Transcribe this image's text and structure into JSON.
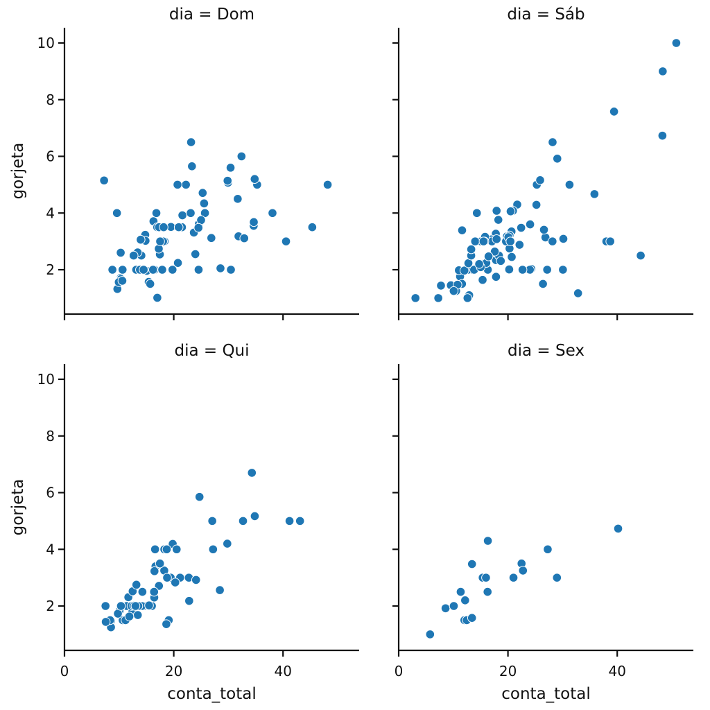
{
  "chart_data": {
    "type": "scatter",
    "facet_variable": "dia",
    "xlabel": "conta_total",
    "ylabel": "gorjeta",
    "xlim": [
      0,
      54
    ],
    "ylim": [
      0.45,
      10.55
    ],
    "xticks": [
      0,
      20,
      40
    ],
    "yticks": [
      2,
      4,
      6,
      8,
      10
    ],
    "grid": false,
    "color": "#1f77b4",
    "panels": [
      {
        "title": "dia = Dom",
        "points": [
          [
            16.99,
            1.01
          ],
          [
            10.34,
            1.66
          ],
          [
            21.01,
            3.5
          ],
          [
            23.68,
            3.31
          ],
          [
            24.59,
            3.61
          ],
          [
            25.29,
            4.71
          ],
          [
            8.77,
            2.0
          ],
          [
            26.88,
            3.12
          ],
          [
            15.04,
            1.96
          ],
          [
            14.78,
            3.23
          ],
          [
            10.27,
            1.71
          ],
          [
            35.26,
            5.0
          ],
          [
            15.42,
            1.57
          ],
          [
            18.43,
            3.0
          ],
          [
            14.83,
            3.02
          ],
          [
            21.58,
            3.92
          ],
          [
            10.33,
            1.67
          ],
          [
            16.29,
            3.71
          ],
          [
            16.97,
            3.5
          ],
          [
            17.46,
            2.54
          ],
          [
            13.94,
            3.06
          ],
          [
            9.68,
            1.32
          ],
          [
            30.4,
            5.6
          ],
          [
            18.29,
            3.0
          ],
          [
            22.23,
            5.0
          ],
          [
            32.4,
            6.0
          ],
          [
            28.55,
            2.05
          ],
          [
            18.04,
            3.0
          ],
          [
            12.54,
            2.5
          ],
          [
            10.29,
            2.6
          ],
          [
            34.81,
            5.2
          ],
          [
            9.94,
            1.56
          ],
          [
            25.56,
            4.34
          ],
          [
            19.49,
            3.51
          ],
          [
            38.07,
            4.0
          ],
          [
            23.95,
            2.55
          ],
          [
            25.71,
            4.0
          ],
          [
            17.31,
            3.5
          ],
          [
            29.93,
            5.07
          ],
          [
            14.07,
            2.5
          ],
          [
            13.13,
            2.0
          ],
          [
            17.26,
            2.74
          ],
          [
            24.55,
            2.0
          ],
          [
            19.77,
            2.0
          ],
          [
            29.85,
            5.14
          ],
          [
            48.17,
            5.0
          ],
          [
            25.0,
            3.75
          ],
          [
            13.39,
            2.61
          ],
          [
            16.49,
            2.0
          ],
          [
            21.5,
            3.5
          ],
          [
            12.66,
            2.5
          ],
          [
            16.21,
            2.0
          ],
          [
            13.81,
            2.0
          ],
          [
            17.51,
            3.0
          ],
          [
            24.52,
            3.48
          ],
          [
            20.76,
            2.24
          ],
          [
            31.71,
            4.5
          ],
          [
            10.59,
            1.61
          ],
          [
            10.63,
            2.0
          ],
          [
            7.25,
            5.15
          ],
          [
            31.85,
            3.18
          ],
          [
            16.82,
            4.0
          ],
          [
            32.9,
            3.11
          ],
          [
            17.89,
            2.0
          ],
          [
            14.48,
            2.0
          ],
          [
            9.6,
            4.0
          ],
          [
            34.63,
            3.55
          ],
          [
            34.65,
            3.68
          ],
          [
            23.33,
            5.65
          ],
          [
            45.35,
            3.5
          ],
          [
            23.17,
            6.5
          ],
          [
            40.55,
            3.0
          ],
          [
            20.69,
            5.0
          ],
          [
            20.9,
            3.5
          ],
          [
            30.46,
            2.0
          ],
          [
            18.15,
            3.5
          ],
          [
            23.1,
            4.0
          ],
          [
            15.69,
            1.5
          ]
        ]
      },
      {
        "title": "dia = Sáb",
        "points": [
          [
            20.65,
            3.35
          ],
          [
            17.92,
            4.08
          ],
          [
            20.29,
            2.75
          ],
          [
            15.77,
            2.23
          ],
          [
            39.42,
            7.58
          ],
          [
            19.82,
            3.18
          ],
          [
            17.81,
            2.34
          ],
          [
            13.37,
            2.0
          ],
          [
            12.69,
            2.0
          ],
          [
            21.7,
            4.3
          ],
          [
            19.65,
            3.0
          ],
          [
            9.55,
            1.45
          ],
          [
            18.35,
            2.5
          ],
          [
            15.06,
            3.0
          ],
          [
            20.69,
            2.45
          ],
          [
            17.78,
            3.27
          ],
          [
            24.06,
            3.6
          ],
          [
            16.31,
            2.0
          ],
          [
            16.93,
            3.07
          ],
          [
            18.69,
            2.31
          ],
          [
            31.27,
            5.0
          ],
          [
            16.04,
            2.24
          ],
          [
            38.01,
            3.0
          ],
          [
            26.41,
            1.5
          ],
          [
            11.24,
            1.76
          ],
          [
            48.27,
            6.73
          ],
          [
            20.29,
            3.21
          ],
          [
            13.81,
            2.0
          ],
          [
            11.02,
            1.98
          ],
          [
            18.29,
            3.76
          ],
          [
            17.59,
            2.64
          ],
          [
            20.08,
            3.15
          ],
          [
            16.45,
            2.47
          ],
          [
            3.07,
            1.0
          ],
          [
            20.23,
            2.01
          ],
          [
            15.01,
            2.09
          ],
          [
            12.02,
            1.97
          ],
          [
            17.07,
            3.0
          ],
          [
            26.86,
            3.14
          ],
          [
            25.28,
            5.0
          ],
          [
            14.73,
            2.2
          ],
          [
            10.51,
            1.25
          ],
          [
            17.92,
            3.08
          ],
          [
            44.3,
            2.5
          ],
          [
            22.42,
            3.48
          ],
          [
            20.92,
            4.08
          ],
          [
            15.36,
            1.64
          ],
          [
            20.49,
            4.06
          ],
          [
            25.21,
            4.29
          ],
          [
            18.24,
            3.76
          ],
          [
            14.31,
            4.0
          ],
          [
            14.0,
            3.0
          ],
          [
            7.25,
            1.0
          ],
          [
            50.81,
            10.0
          ],
          [
            15.81,
            3.16
          ],
          [
            26.59,
            3.41
          ],
          [
            38.73,
            3.0
          ],
          [
            24.27,
            2.03
          ],
          [
            12.76,
            2.23
          ],
          [
            30.06,
            2.0
          ],
          [
            25.89,
            5.16
          ],
          [
            48.33,
            9.0
          ],
          [
            13.27,
            2.5
          ],
          [
            28.17,
            6.5
          ],
          [
            12.9,
            1.1
          ],
          [
            28.15,
            3.0
          ],
          [
            11.59,
            1.5
          ],
          [
            7.74,
            1.44
          ],
          [
            30.14,
            3.09
          ],
          [
            20.45,
            3.0
          ],
          [
            13.28,
            2.72
          ],
          [
            22.12,
            2.88
          ],
          [
            24.01,
            2.0
          ],
          [
            15.69,
            3.0
          ],
          [
            11.61,
            3.39
          ],
          [
            10.77,
            1.47
          ],
          [
            15.53,
            3.0
          ],
          [
            10.07,
            1.25
          ],
          [
            12.6,
            1.0
          ],
          [
            32.83,
            1.17
          ],
          [
            35.83,
            4.67
          ],
          [
            29.03,
            5.92
          ],
          [
            27.18,
            2.0
          ],
          [
            22.67,
            2.0
          ],
          [
            17.82,
            1.75
          ]
        ]
      },
      {
        "title": "dia = Qui",
        "points": [
          [
            27.2,
            4.0
          ],
          [
            22.76,
            3.0
          ],
          [
            17.29,
            2.71
          ],
          [
            19.44,
            3.0
          ],
          [
            16.66,
            3.4
          ],
          [
            10.07,
            1.83
          ],
          [
            32.68,
            5.0
          ],
          [
            15.98,
            2.03
          ],
          [
            34.83,
            5.17
          ],
          [
            13.03,
            2.0
          ],
          [
            18.28,
            4.0
          ],
          [
            24.71,
            5.85
          ],
          [
            21.16,
            3.0
          ],
          [
            10.65,
            1.5
          ],
          [
            12.43,
            1.8
          ],
          [
            24.08,
            2.92
          ],
          [
            11.69,
            2.31
          ],
          [
            13.42,
            1.68
          ],
          [
            14.26,
            2.5
          ],
          [
            15.95,
            2.0
          ],
          [
            12.48,
            2.52
          ],
          [
            29.8,
            4.2
          ],
          [
            8.52,
            1.48
          ],
          [
            14.52,
            2.0
          ],
          [
            11.38,
            2.0
          ],
          [
            22.82,
            2.18
          ],
          [
            19.08,
            1.5
          ],
          [
            20.27,
            2.83
          ],
          [
            11.17,
            1.5
          ],
          [
            12.26,
            2.0
          ],
          [
            18.26,
            3.25
          ],
          [
            8.51,
            1.25
          ],
          [
            10.33,
            2.0
          ],
          [
            14.15,
            2.0
          ],
          [
            16.0,
            2.0
          ],
          [
            13.16,
            2.75
          ],
          [
            17.47,
            3.5
          ],
          [
            34.3,
            6.7
          ],
          [
            41.19,
            5.0
          ],
          [
            27.05,
            5.0
          ],
          [
            16.43,
            2.3
          ],
          [
            8.35,
            1.5
          ],
          [
            18.64,
            1.36
          ],
          [
            11.87,
            1.63
          ],
          [
            9.78,
            1.73
          ],
          [
            7.51,
            2.0
          ],
          [
            19.81,
            4.19
          ],
          [
            28.44,
            2.56
          ],
          [
            15.48,
            2.02
          ],
          [
            16.58,
            4.0
          ],
          [
            7.56,
            1.44
          ],
          [
            10.34,
            2.0
          ],
          [
            43.11,
            5.0
          ],
          [
            13.0,
            2.0
          ],
          [
            13.51,
            2.0
          ],
          [
            18.71,
            4.0
          ],
          [
            12.74,
            2.01
          ],
          [
            13.0,
            2.0
          ],
          [
            16.4,
            2.5
          ],
          [
            20.53,
            4.0
          ],
          [
            16.47,
            3.23
          ],
          [
            18.78,
            3.0
          ]
        ]
      },
      {
        "title": "dia = Sex",
        "points": [
          [
            28.97,
            3.0
          ],
          [
            22.49,
            3.5
          ],
          [
            5.75,
            1.0
          ],
          [
            16.32,
            4.3
          ],
          [
            22.75,
            3.25
          ],
          [
            40.17,
            4.73
          ],
          [
            27.28,
            4.0
          ],
          [
            12.03,
            1.5
          ],
          [
            21.01,
            3.0
          ],
          [
            12.46,
            1.5
          ],
          [
            11.35,
            2.5
          ],
          [
            15.38,
            3.0
          ],
          [
            12.16,
            2.2
          ],
          [
            13.42,
            3.48
          ],
          [
            8.58,
            1.92
          ],
          [
            15.98,
            3.0
          ],
          [
            13.42,
            1.58
          ],
          [
            16.27,
            2.5
          ],
          [
            10.09,
            2.0
          ]
        ]
      }
    ]
  }
}
